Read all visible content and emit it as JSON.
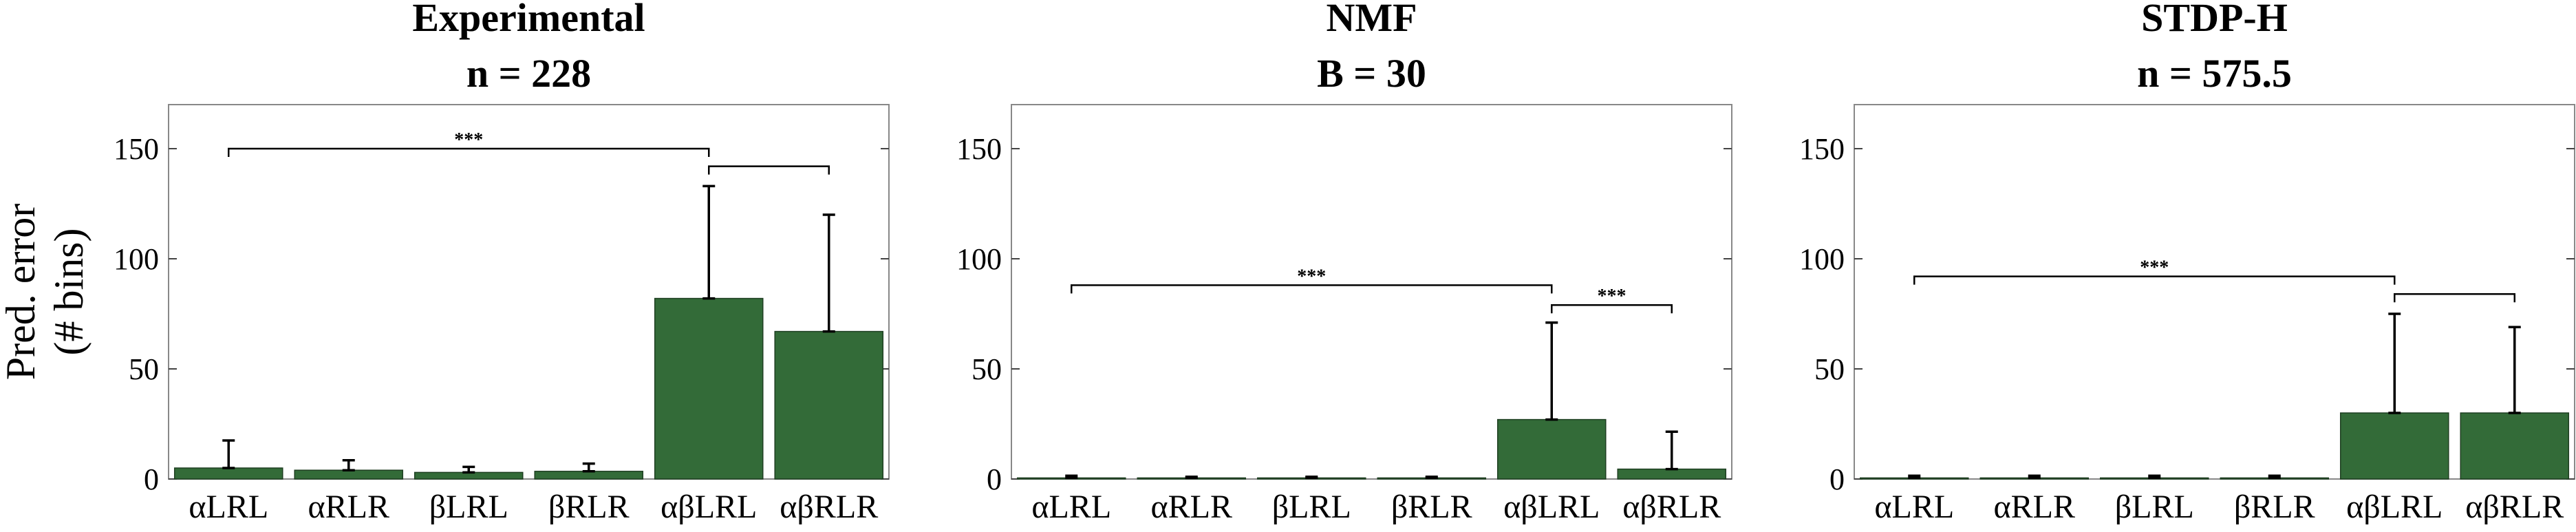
{
  "chart_data": [
    {
      "type": "bar",
      "title": [
        "Experimental",
        "n = 228"
      ],
      "ylabel": [
        "Pred. error",
        "(# bins)"
      ],
      "ylim": [
        0,
        170
      ],
      "yticks": [
        0,
        50,
        100,
        150
      ],
      "categories": [
        "αLRL",
        "αRLR",
        "βLRL",
        "βRLR",
        "αβLRL",
        "αβRLR"
      ],
      "values": [
        5,
        4,
        3,
        3.5,
        82,
        67
      ],
      "errors": [
        12.5,
        4.5,
        2.5,
        3.5,
        51,
        53
      ],
      "significance": [
        {
          "from": 0,
          "to": 4,
          "level": 150,
          "label": "***"
        },
        {
          "from": 4,
          "to": 5,
          "level": 142,
          "label": ""
        }
      ],
      "bar_color": "#336b38"
    },
    {
      "type": "bar",
      "title": [
        "NMF",
        "B = 30"
      ],
      "ylabel": [
        "",
        ""
      ],
      "ylim": [
        0,
        170
      ],
      "yticks": [
        0,
        50,
        100,
        150
      ],
      "categories": [
        "αLRL",
        "αRLR",
        "βLRL",
        "βRLR",
        "αβLRL",
        "αβRLR"
      ],
      "values": [
        0.5,
        0.5,
        0.5,
        0.5,
        27,
        4.5
      ],
      "errors": [
        1,
        0.5,
        0.5,
        0.5,
        44,
        17
      ],
      "significance": [
        {
          "from": 0,
          "to": 4,
          "level": 88,
          "label": "***"
        },
        {
          "from": 4,
          "to": 5,
          "level": 79,
          "label": "***"
        }
      ],
      "bar_color": "#336b38"
    },
    {
      "type": "bar",
      "title": [
        "STDP-H",
        "n = 575.5"
      ],
      "ylabel": [
        "",
        ""
      ],
      "ylim": [
        0,
        170
      ],
      "yticks": [
        0,
        50,
        100,
        150
      ],
      "categories": [
        "αLRL",
        "αRLR",
        "βLRL",
        "βRLR",
        "αβLRL",
        "αβRLR"
      ],
      "values": [
        0.5,
        0.5,
        0.5,
        0.5,
        30,
        30
      ],
      "errors": [
        1,
        1,
        1,
        1,
        45,
        39
      ],
      "significance": [
        {
          "from": 0,
          "to": 4,
          "level": 92,
          "label": "***"
        },
        {
          "from": 4,
          "to": 5,
          "level": 84,
          "label": ""
        }
      ],
      "bar_color": "#336b38"
    }
  ]
}
